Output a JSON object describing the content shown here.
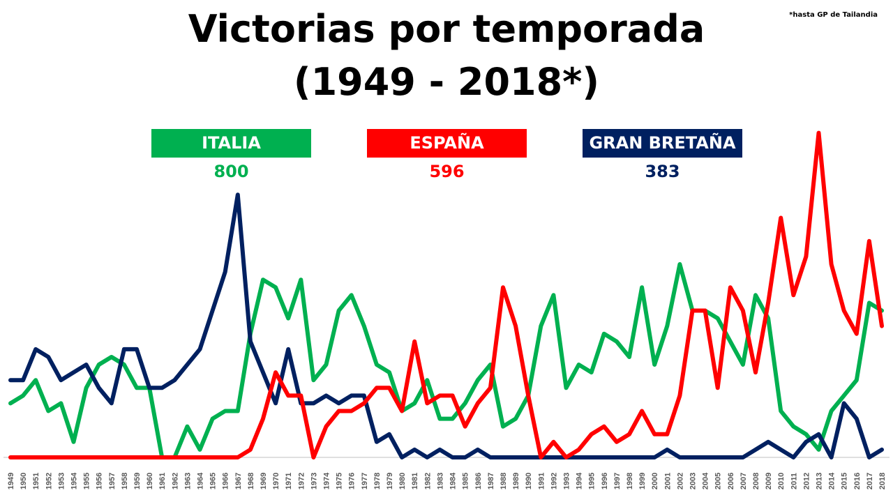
{
  "header": {
    "title_line1": "Victorias por temporada",
    "title_line2": "(1949 - 2018*)",
    "note": "*hasta GP de Tailandia"
  },
  "legend": [
    {
      "label": "ITALIA",
      "total": "800",
      "color": "#00b050"
    },
    {
      "label": "ESPAÑA",
      "total": "596",
      "color": "#ff0000"
    },
    {
      "label": "GRAN BRETAÑA",
      "total": "383",
      "color": "#002060"
    }
  ],
  "chart_data": {
    "type": "line",
    "title": "Victorias por temporada (1949 - 2018*)",
    "xlabel": "",
    "ylabel": "",
    "ylim": [
      0,
      34
    ],
    "grid": false,
    "categories": [
      "1949",
      "1950",
      "1951",
      "1952",
      "1953",
      "1954",
      "1955",
      "1956",
      "1957",
      "1958",
      "1959",
      "1960",
      "1961",
      "1962",
      "1963",
      "1964",
      "1965",
      "1966",
      "1967",
      "1968",
      "1969",
      "1970",
      "1971",
      "1972",
      "1973",
      "1974",
      "1975",
      "1976",
      "1977",
      "1978",
      "1979",
      "1980",
      "1981",
      "1982",
      "1983",
      "1984",
      "1985",
      "1986",
      "1987",
      "1988",
      "1989",
      "1990",
      "1991",
      "1992",
      "1993",
      "1994",
      "1995",
      "1996",
      "1997",
      "1998",
      "1999",
      "2000",
      "2001",
      "2002",
      "2003",
      "2004",
      "2005",
      "2006",
      "2007",
      "2008",
      "2009",
      "2010",
      "2011",
      "2012",
      "2013",
      "2014",
      "2015",
      "2016",
      "2017",
      "2018"
    ],
    "series": [
      {
        "name": "ITALIA",
        "color": "#00b050",
        "values": [
          7,
          8,
          10,
          6,
          7,
          2,
          9,
          12,
          13,
          12,
          9,
          9,
          0,
          0,
          4,
          1,
          5,
          6,
          6,
          16,
          23,
          22,
          18,
          23,
          10,
          12,
          19,
          21,
          17,
          12,
          11,
          6,
          7,
          10,
          5,
          5,
          7,
          10,
          12,
          4,
          5,
          8,
          17,
          21,
          9,
          12,
          11,
          16,
          15,
          13,
          22,
          12,
          17,
          25,
          19,
          19,
          18,
          15,
          12,
          21,
          18,
          6,
          4,
          3,
          1,
          6,
          8,
          10,
          20,
          19
        ]
      },
      {
        "name": "ESPAÑA",
        "color": "#ff0000",
        "values": [
          0,
          0,
          0,
          0,
          0,
          0,
          0,
          0,
          0,
          0,
          0,
          0,
          0,
          0,
          0,
          0,
          0,
          0,
          0,
          1,
          5,
          11,
          8,
          8,
          0,
          4,
          6,
          6,
          7,
          9,
          9,
          6,
          15,
          7,
          8,
          8,
          4,
          7,
          9,
          22,
          17,
          8,
          0,
          2,
          0,
          1,
          3,
          4,
          2,
          3,
          6,
          3,
          3,
          8,
          19,
          19,
          9,
          22,
          19,
          11,
          20,
          31,
          21,
          26,
          42,
          25,
          19,
          16,
          28,
          17
        ]
      },
      {
        "name": "GRAN BRETAÑA",
        "color": "#002060",
        "values": [
          10,
          10,
          14,
          13,
          10,
          11,
          12,
          9,
          7,
          14,
          14,
          9,
          9,
          10,
          12,
          14,
          19,
          24,
          34,
          15,
          11,
          7,
          14,
          7,
          7,
          8,
          7,
          8,
          8,
          2,
          3,
          0,
          1,
          0,
          1,
          0,
          0,
          1,
          0,
          0,
          0,
          0,
          0,
          0,
          0,
          0,
          0,
          0,
          0,
          0,
          0,
          0,
          1,
          0,
          0,
          0,
          0,
          0,
          0,
          1,
          2,
          1,
          0,
          2,
          3,
          0,
          7,
          5,
          0,
          1
        ]
      }
    ]
  }
}
